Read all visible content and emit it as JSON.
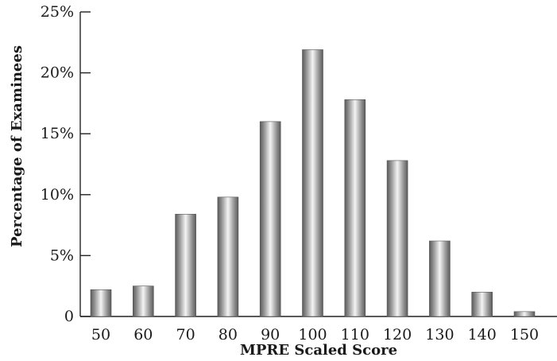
{
  "chart_data": {
    "type": "bar",
    "title": "",
    "xlabel": "MPRE Scaled Score",
    "ylabel": "Percentage of Examinees",
    "categories": [
      "50",
      "60",
      "70",
      "80",
      "90",
      "100",
      "110",
      "120",
      "130",
      "140",
      "150"
    ],
    "values": [
      2.2,
      2.5,
      8.4,
      9.8,
      16.0,
      21.9,
      17.8,
      12.8,
      6.2,
      2.0,
      0.4
    ],
    "ylim": [
      0,
      25
    ],
    "yticks": [
      0,
      5,
      10,
      15,
      20,
      25
    ],
    "ytick_labels": [
      "0",
      "5%",
      "10%",
      "15%",
      "20%",
      "25%"
    ],
    "grid": false,
    "legend": "none",
    "colors": {
      "bar_dark": "#5a5a5a",
      "bar_light": "#f4f4f4",
      "axis": "#222222"
    }
  }
}
